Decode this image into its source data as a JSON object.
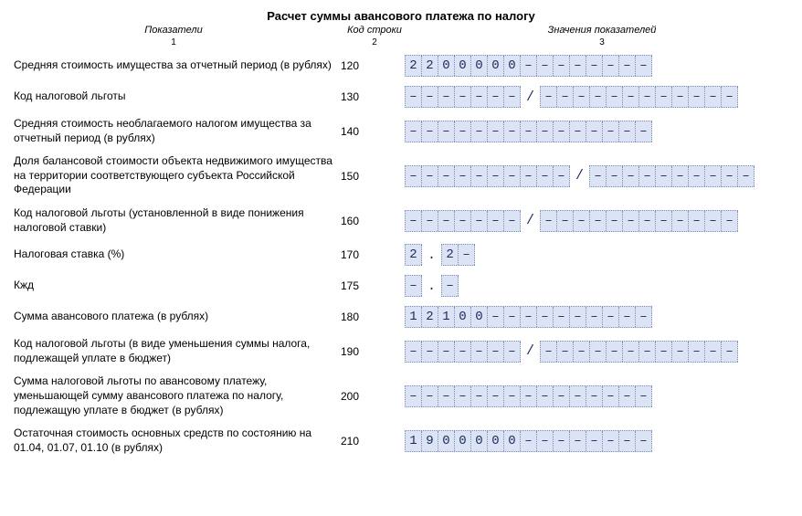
{
  "title": "Расчет суммы авансового платежа по налогу",
  "headers": {
    "col1": "Показатели",
    "col2": "Код строки",
    "col3": "Значения показателей",
    "sub1": "1",
    "sub2": "2",
    "sub3": "3"
  },
  "rows": [
    {
      "label": "Средняя стоимость имущества за отчетный период (в рублях)",
      "code": "120",
      "groups": [
        {
          "cells": [
            "2",
            "2",
            "0",
            "0",
            "0",
            "0",
            "0",
            "–",
            "–",
            "–",
            "–",
            "–",
            "–",
            "–",
            "–"
          ]
        }
      ]
    },
    {
      "label": "Код налоговой льготы",
      "code": "130",
      "groups": [
        {
          "cells": [
            "–",
            "–",
            "–",
            "–",
            "–",
            "–",
            "–"
          ]
        },
        {
          "sep": "/"
        },
        {
          "cells": [
            "–",
            "–",
            "–",
            "–",
            "–",
            "–",
            "–",
            "–",
            "–",
            "–",
            "–",
            "–"
          ]
        }
      ]
    },
    {
      "label": "Средняя стоимость необлагаемого налогом имущества за отчетный период (в рублях)",
      "code": "140",
      "groups": [
        {
          "cells": [
            "–",
            "–",
            "–",
            "–",
            "–",
            "–",
            "–",
            "–",
            "–",
            "–",
            "–",
            "–",
            "–",
            "–",
            "–"
          ]
        }
      ]
    },
    {
      "label": "Доля балансовой стоимости объекта недвижимого имущества на территории соответствующего субъекта Российской Федерации",
      "code": "150",
      "groups": [
        {
          "cells": [
            "–",
            "–",
            "–",
            "–",
            "–",
            "–",
            "–",
            "–",
            "–",
            "–"
          ]
        },
        {
          "sep": "/"
        },
        {
          "cells": [
            "–",
            "–",
            "–",
            "–",
            "–",
            "–",
            "–",
            "–",
            "–",
            "–"
          ]
        }
      ]
    },
    {
      "label": "Код налоговой льготы (установленной в виде понижения налоговой ставки)",
      "code": "160",
      "groups": [
        {
          "cells": [
            "–",
            "–",
            "–",
            "–",
            "–",
            "–",
            "–"
          ]
        },
        {
          "sep": "/"
        },
        {
          "cells": [
            "–",
            "–",
            "–",
            "–",
            "–",
            "–",
            "–",
            "–",
            "–",
            "–",
            "–",
            "–"
          ]
        }
      ]
    },
    {
      "label": "Налоговая ставка (%)",
      "code": "170",
      "groups": [
        {
          "cells": [
            "2"
          ]
        },
        {
          "sep": "."
        },
        {
          "cells": [
            "2",
            "–"
          ]
        }
      ]
    },
    {
      "label": "Кжд",
      "code": "175",
      "groups": [
        {
          "cells": [
            "–"
          ]
        },
        {
          "sep": "."
        },
        {
          "cells": [
            "–"
          ]
        }
      ]
    },
    {
      "label": "Сумма авансового платежа (в рублях)",
      "code": "180",
      "groups": [
        {
          "cells": [
            "1",
            "2",
            "1",
            "0",
            "0",
            "–",
            "–",
            "–",
            "–",
            "–",
            "–",
            "–",
            "–",
            "–",
            "–"
          ]
        }
      ]
    },
    {
      "label": "Код налоговой льготы (в виде уменьшения суммы налога, подлежащей уплате в бюджет)",
      "code": "190",
      "groups": [
        {
          "cells": [
            "–",
            "–",
            "–",
            "–",
            "–",
            "–",
            "–"
          ]
        },
        {
          "sep": "/"
        },
        {
          "cells": [
            "–",
            "–",
            "–",
            "–",
            "–",
            "–",
            "–",
            "–",
            "–",
            "–",
            "–",
            "–"
          ]
        }
      ]
    },
    {
      "label": "Сумма налоговой льготы по авансовому платежу, уменьшающей сумму авансового платежа по налогу, подлежащую уплате в бюджет (в рублях)",
      "code": "200",
      "groups": [
        {
          "cells": [
            "–",
            "–",
            "–",
            "–",
            "–",
            "–",
            "–",
            "–",
            "–",
            "–",
            "–",
            "–",
            "–",
            "–",
            "–"
          ]
        }
      ]
    },
    {
      "label": "Остаточная стоимость основных средств по состоянию на 01.04, 01.07, 01.10 (в рублях)",
      "code": "210",
      "groups": [
        {
          "cells": [
            "1",
            "9",
            "0",
            "0",
            "0",
            "0",
            "0",
            "–",
            "–",
            "–",
            "–",
            "–",
            "–",
            "–",
            "–"
          ]
        }
      ]
    }
  ]
}
